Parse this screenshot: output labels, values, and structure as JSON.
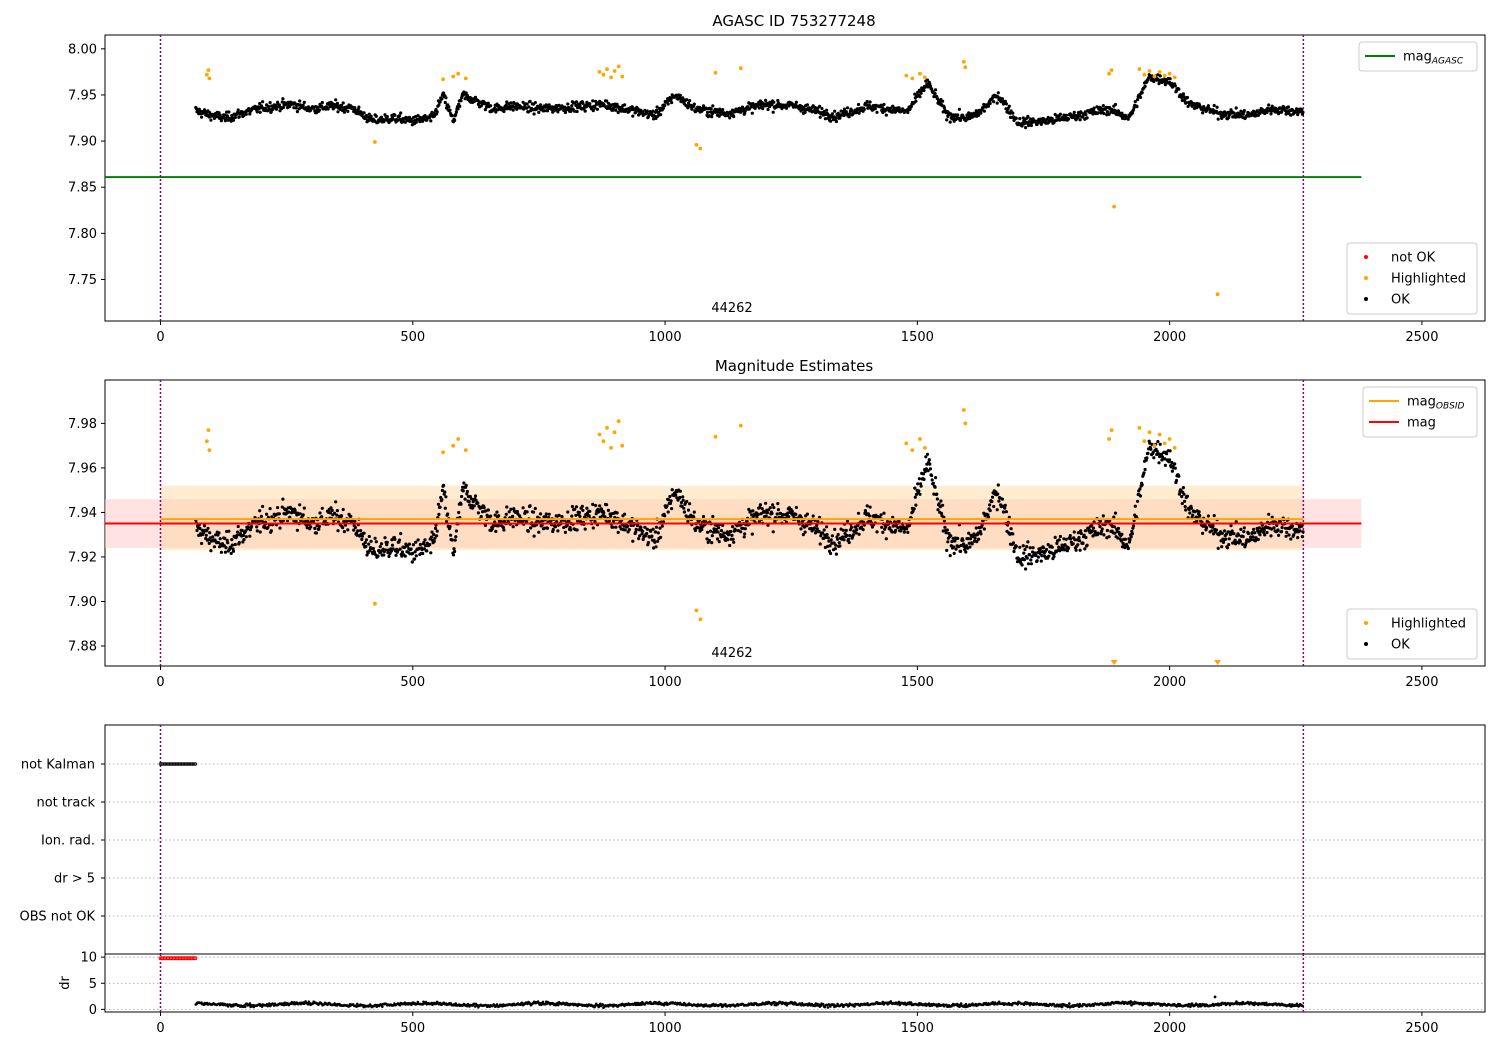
{
  "figure": {
    "background": "#ffffff"
  },
  "chart_data": [
    {
      "type": "scatter",
      "title": "AGASC ID 753277248",
      "annotation": "44262",
      "xlim": [
        -110,
        2625
      ],
      "ylim": [
        7.705,
        8.015
      ],
      "xticks": [
        0,
        500,
        1000,
        1500,
        2000,
        2500
      ],
      "yticks": [
        7.75,
        7.8,
        7.85,
        7.9,
        7.95,
        8.0
      ],
      "ytick_labels": [
        "7.75",
        "7.80",
        "7.85",
        "7.90",
        "7.95",
        "8.00"
      ],
      "vlines": [
        0,
        2265
      ],
      "hlines": [
        {
          "name": "mag_AGASC",
          "y": 7.861,
          "x": [
            -110,
            2380
          ],
          "color": "#008000"
        }
      ],
      "legends": [
        {
          "position": "upper right",
          "entries": [
            {
              "label": "mag",
              "sub": "AGASC",
              "kind": "line",
              "color": "#008000"
            }
          ]
        },
        {
          "position": "lower right",
          "entries": [
            {
              "label": "not OK",
              "kind": "dot",
              "color": "#ff0000"
            },
            {
              "label": "Highlighted",
              "kind": "dot",
              "color": "#ffa500"
            },
            {
              "label": "OK",
              "kind": "dot",
              "color": "#000000"
            }
          ]
        }
      ],
      "x_range": [
        70,
        2265
      ],
      "baseline": {
        "x": [
          70,
          100,
          130,
          160,
          200,
          260,
          300,
          340,
          380,
          420,
          460,
          500,
          540,
          560,
          580,
          600,
          660,
          700,
          760,
          840,
          880,
          920,
          980,
          1020,
          1060,
          1120,
          1160,
          1200,
          1260,
          1340,
          1400,
          1480,
          1520,
          1560,
          1600,
          1620,
          1660,
          1700,
          1760,
          1820,
          1880,
          1920,
          1960,
          2000,
          2040,
          2100,
          2160,
          2200,
          2265
        ],
        "y": [
          7.933,
          7.928,
          7.925,
          7.93,
          7.936,
          7.94,
          7.935,
          7.938,
          7.936,
          7.922,
          7.925,
          7.922,
          7.925,
          7.95,
          7.922,
          7.95,
          7.935,
          7.938,
          7.935,
          7.938,
          7.94,
          7.935,
          7.928,
          7.95,
          7.935,
          7.93,
          7.935,
          7.94,
          7.938,
          7.927,
          7.938,
          7.932,
          7.963,
          7.928,
          7.925,
          7.93,
          7.95,
          7.92,
          7.922,
          7.928,
          7.935,
          7.925,
          7.97,
          7.965,
          7.94,
          7.93,
          7.928,
          7.935,
          7.932
        ]
      },
      "highlighted": [
        {
          "x": 95,
          "y": 7.977
        },
        {
          "x": 92,
          "y": 7.972
        },
        {
          "x": 97,
          "y": 7.968
        },
        {
          "x": 425,
          "y": 7.899
        },
        {
          "x": 560,
          "y": 7.967
        },
        {
          "x": 580,
          "y": 7.97
        },
        {
          "x": 590,
          "y": 7.973
        },
        {
          "x": 605,
          "y": 7.968
        },
        {
          "x": 870,
          "y": 7.975
        },
        {
          "x": 878,
          "y": 7.972
        },
        {
          "x": 885,
          "y": 7.978
        },
        {
          "x": 893,
          "y": 7.969
        },
        {
          "x": 900,
          "y": 7.976
        },
        {
          "x": 908,
          "y": 7.981
        },
        {
          "x": 915,
          "y": 7.97
        },
        {
          "x": 1062,
          "y": 7.896
        },
        {
          "x": 1070,
          "y": 7.892
        },
        {
          "x": 1100,
          "y": 7.974
        },
        {
          "x": 1150,
          "y": 7.979
        },
        {
          "x": 1478,
          "y": 7.971
        },
        {
          "x": 1490,
          "y": 7.968
        },
        {
          "x": 1505,
          "y": 7.973
        },
        {
          "x": 1515,
          "y": 7.969
        },
        {
          "x": 1592,
          "y": 7.986
        },
        {
          "x": 1595,
          "y": 7.98
        },
        {
          "x": 1880,
          "y": 7.973
        },
        {
          "x": 1885,
          "y": 7.977
        },
        {
          "x": 1890,
          "y": 7.829
        },
        {
          "x": 1940,
          "y": 7.978
        },
        {
          "x": 1950,
          "y": 7.972
        },
        {
          "x": 1960,
          "y": 7.976
        },
        {
          "x": 1970,
          "y": 7.97
        },
        {
          "x": 1980,
          "y": 7.975
        },
        {
          "x": 1990,
          "y": 7.971
        },
        {
          "x": 2000,
          "y": 7.973
        },
        {
          "x": 2010,
          "y": 7.969
        },
        {
          "x": 2095,
          "y": 7.734
        }
      ]
    },
    {
      "type": "scatter",
      "title": "Magnitude Estimates",
      "annotation": "44262",
      "xlim": [
        -110,
        2625
      ],
      "ylim": [
        7.871,
        7.9995
      ],
      "xticks": [
        0,
        500,
        1000,
        1500,
        2000,
        2500
      ],
      "yticks": [
        7.88,
        7.9,
        7.92,
        7.94,
        7.96,
        7.98
      ],
      "ytick_labels": [
        "7.88",
        "7.90",
        "7.92",
        "7.94",
        "7.96",
        "7.98"
      ],
      "vlines": [
        0,
        2265
      ],
      "bands": [
        {
          "name": "mag_band",
          "y": [
            7.924,
            7.946
          ],
          "x": [
            -110,
            2380
          ],
          "color": "#ffcccc",
          "opacity": 0.55
        },
        {
          "name": "mag_OBSID_band",
          "y": [
            7.923,
            7.952
          ],
          "x": [
            0,
            2265
          ],
          "color": "#ffd59a",
          "opacity": 0.45
        }
      ],
      "hlines": [
        {
          "name": "mag_OBSID",
          "y": 7.937,
          "x": [
            0,
            2265
          ],
          "color": "#ffa500"
        },
        {
          "name": "mag",
          "y": 7.935,
          "x": [
            -110,
            2380
          ],
          "color": "#ff0000"
        }
      ],
      "markers_at_floor": [
        1890,
        2095
      ],
      "legends": [
        {
          "position": "upper right",
          "entries": [
            {
              "label": "mag",
              "sub": "OBSID",
              "kind": "line",
              "color": "#ffa500"
            },
            {
              "label": "mag",
              "kind": "line",
              "color": "#ff0000"
            }
          ]
        },
        {
          "position": "lower right",
          "entries": [
            {
              "label": "Highlighted",
              "kind": "dot",
              "color": "#ffa500"
            },
            {
              "label": "OK",
              "kind": "dot",
              "color": "#000000"
            }
          ]
        }
      ]
    },
    {
      "type": "scatter",
      "title": "",
      "xlim": [
        -110,
        2625
      ],
      "category_rows": [
        "not Kalman",
        "not track",
        "Ion. rad.",
        "dr > 5",
        "OBS not OK"
      ],
      "not_kalman_range": [
        0,
        70
      ],
      "vlines": [
        0,
        2265
      ]
    },
    {
      "type": "scatter",
      "title": "",
      "ylabel": "dr",
      "xlim": [
        -110,
        2625
      ],
      "ylim": [
        -0.5,
        10.6
      ],
      "xticks": [
        0,
        500,
        1000,
        1500,
        2000,
        2500
      ],
      "yticks": [
        0,
        5,
        10
      ],
      "ytick_labels": [
        "0",
        "5",
        "10"
      ],
      "vlines": [
        0,
        2265
      ],
      "dr_high": {
        "x": [
          0,
          70
        ],
        "y": 9.8,
        "color": "#ff0000"
      },
      "dr_low": {
        "x": [
          70,
          2265
        ],
        "y_range": [
          0.3,
          1.6
        ],
        "outlier": {
          "x": 2090,
          "y": 2.4
        }
      }
    }
  ],
  "style": {
    "ok_color": "#000000",
    "highlight_color": "#ffa500",
    "notok_color": "#ff0000",
    "vline_color": "#800080",
    "grid_color": "#b0b0b0"
  }
}
